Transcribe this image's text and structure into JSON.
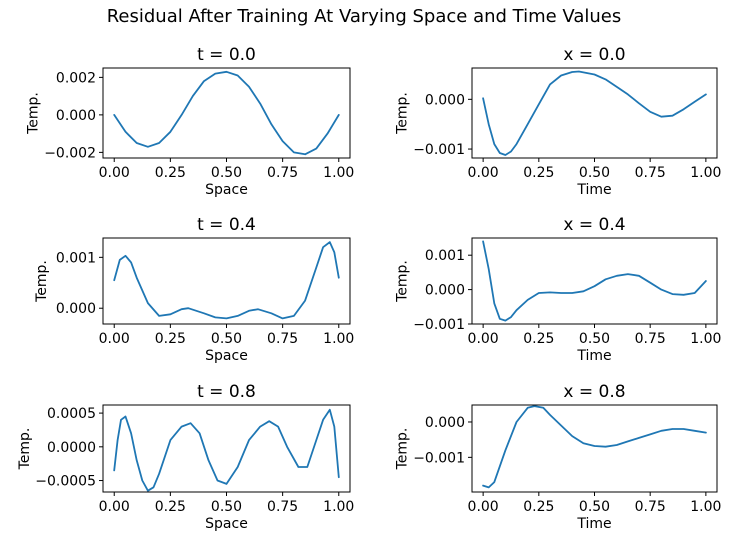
{
  "figure": {
    "title": "Residual After Training At Varying Space and Time Values"
  },
  "colors": {
    "line": "#1f77b4",
    "axes": "#000000",
    "background": "#ffffff"
  },
  "chart_data": [
    {
      "type": "line",
      "title": "t = 0.0",
      "xlabel": "Space",
      "ylabel": "Temp.",
      "xlim": [
        -0.05,
        1.05
      ],
      "ylim": [
        -0.0023,
        0.0025
      ],
      "xticks": [
        0,
        0.25,
        0.5,
        0.75,
        1
      ],
      "xtick_labels": [
        "0.00",
        "0.25",
        "0.50",
        "0.75",
        "1.00"
      ],
      "yticks": [
        -0.002,
        0,
        0.002
      ],
      "ytick_labels": [
        "−0.002",
        "0.000",
        "0.002"
      ],
      "grid": false,
      "series": [
        {
          "x": [
            0,
            0.05,
            0.1,
            0.15,
            0.2,
            0.25,
            0.3,
            0.35,
            0.4,
            0.45,
            0.5,
            0.55,
            0.6,
            0.65,
            0.7,
            0.75,
            0.8,
            0.85,
            0.9,
            0.95,
            1
          ],
          "y": [
            0,
            -0.0009,
            -0.0015,
            -0.0017,
            -0.0015,
            -0.0009,
            0.0,
            0.001,
            0.0018,
            0.0022,
            0.0023,
            0.0021,
            0.0015,
            0.0006,
            -0.0005,
            -0.0014,
            -0.002,
            -0.0021,
            -0.0018,
            -0.001,
            0
          ]
        }
      ]
    },
    {
      "type": "line",
      "title": "x = 0.0",
      "xlabel": "Time",
      "ylabel": "Temp.",
      "xlim": [
        -0.05,
        1.05
      ],
      "ylim": [
        -0.00118,
        0.00063
      ],
      "xticks": [
        0,
        0.25,
        0.5,
        0.75,
        1
      ],
      "xtick_labels": [
        "0.00",
        "0.25",
        "0.50",
        "0.75",
        "1.00"
      ],
      "yticks": [
        -0.001,
        0
      ],
      "ytick_labels": [
        "−0.001",
        "0.000"
      ],
      "grid": false,
      "series": [
        {
          "x": [
            0,
            0.025,
            0.05,
            0.075,
            0.1,
            0.125,
            0.15,
            0.2,
            0.25,
            0.3,
            0.35,
            0.4,
            0.43,
            0.5,
            0.55,
            0.6,
            0.65,
            0.7,
            0.75,
            0.8,
            0.85,
            0.9,
            0.95,
            1
          ],
          "y": [
            2e-05,
            -0.0005,
            -0.0009,
            -0.00108,
            -0.00112,
            -0.00105,
            -0.0009,
            -0.0005,
            -0.0001,
            0.0003,
            0.00048,
            0.00055,
            0.00056,
            0.0005,
            0.0004,
            0.00025,
            0.0001,
            -8e-05,
            -0.00025,
            -0.00035,
            -0.00033,
            -0.0002,
            -5e-05,
            0.0001
          ]
        }
      ]
    },
    {
      "type": "line",
      "title": "t = 0.4",
      "xlabel": "Space",
      "ylabel": "Temp.",
      "xlim": [
        -0.05,
        1.05
      ],
      "ylim": [
        -0.00031,
        0.00138
      ],
      "xticks": [
        0,
        0.25,
        0.5,
        0.75,
        1
      ],
      "xtick_labels": [
        "0.00",
        "0.25",
        "0.50",
        "0.75",
        "1.00"
      ],
      "yticks": [
        0,
        0.001
      ],
      "ytick_labels": [
        "0.000",
        "0.001"
      ],
      "grid": false,
      "series": [
        {
          "x": [
            0,
            0.025,
            0.05,
            0.075,
            0.1,
            0.15,
            0.2,
            0.25,
            0.3,
            0.33,
            0.4,
            0.45,
            0.5,
            0.55,
            0.6,
            0.64,
            0.7,
            0.75,
            0.8,
            0.85,
            0.9,
            0.93,
            0.96,
            0.98,
            1
          ],
          "y": [
            0.00055,
            0.00095,
            0.00103,
            0.0009,
            0.0006,
            0.0001,
            -0.00015,
            -0.00012,
            -2e-05,
            0.0,
            -0.0001,
            -0.00018,
            -0.0002,
            -0.00015,
            -5e-05,
            -2e-05,
            -0.0001,
            -0.0002,
            -0.00015,
            0.00015,
            0.0008,
            0.0012,
            0.0013,
            0.0011,
            0.0006
          ]
        }
      ]
    },
    {
      "type": "line",
      "title": "x = 0.4",
      "xlabel": "Time",
      "ylabel": "Temp.",
      "xlim": [
        -0.05,
        1.05
      ],
      "ylim": [
        -0.001,
        0.0015
      ],
      "xticks": [
        0,
        0.25,
        0.5,
        0.75,
        1
      ],
      "xtick_labels": [
        "0.00",
        "0.25",
        "0.50",
        "0.75",
        "1.00"
      ],
      "yticks": [
        -0.001,
        0,
        0.001
      ],
      "ytick_labels": [
        "−0.001",
        "0.000",
        "0.001"
      ],
      "grid": false,
      "series": [
        {
          "x": [
            0,
            0.025,
            0.05,
            0.075,
            0.1,
            0.125,
            0.15,
            0.2,
            0.25,
            0.3,
            0.35,
            0.4,
            0.45,
            0.5,
            0.55,
            0.6,
            0.65,
            0.7,
            0.75,
            0.8,
            0.85,
            0.9,
            0.95,
            1
          ],
          "y": [
            0.0014,
            0.0006,
            -0.0004,
            -0.00085,
            -0.0009,
            -0.0008,
            -0.0006,
            -0.0003,
            -0.0001,
            -8e-05,
            -0.0001,
            -0.0001,
            -5e-05,
            0.0001,
            0.0003,
            0.0004,
            0.00045,
            0.0004,
            0.0002,
            0.0,
            -0.00013,
            -0.00015,
            -0.0001,
            0.00025
          ]
        }
      ]
    },
    {
      "type": "line",
      "title": "t = 0.8",
      "xlabel": "Space",
      "ylabel": "Temp.",
      "xlim": [
        -0.05,
        1.05
      ],
      "ylim": [
        -0.00067,
        0.00062
      ],
      "xticks": [
        0,
        0.25,
        0.5,
        0.75,
        1
      ],
      "xtick_labels": [
        "0.00",
        "0.25",
        "0.50",
        "0.75",
        "1.00"
      ],
      "yticks": [
        -0.0005,
        0,
        0.0005
      ],
      "ytick_labels": [
        "−0.0005",
        "0.0000",
        "0.0005"
      ],
      "grid": false,
      "series": [
        {
          "x": [
            0,
            0.015,
            0.03,
            0.05,
            0.075,
            0.1,
            0.125,
            0.15,
            0.175,
            0.2,
            0.25,
            0.3,
            0.34,
            0.38,
            0.42,
            0.46,
            0.5,
            0.55,
            0.6,
            0.65,
            0.69,
            0.73,
            0.77,
            0.82,
            0.86,
            0.9,
            0.93,
            0.96,
            0.98,
            1
          ],
          "y": [
            -0.00035,
            0.0001,
            0.0004,
            0.00045,
            0.0002,
            -0.0002,
            -0.0005,
            -0.00065,
            -0.0006,
            -0.0004,
            0.0001,
            0.0003,
            0.00035,
            0.0002,
            -0.0002,
            -0.0005,
            -0.00055,
            -0.0003,
            0.0001,
            0.0003,
            0.00038,
            0.0003,
            0.0,
            -0.0003,
            -0.0003,
            0.0001,
            0.0004,
            0.00055,
            0.0003,
            -0.00045
          ]
        }
      ]
    },
    {
      "type": "line",
      "title": "x = 0.8",
      "xlabel": "Time",
      "ylabel": "Temp.",
      "xlim": [
        -0.05,
        1.05
      ],
      "ylim": [
        -0.00198,
        0.00048
      ],
      "xticks": [
        0,
        0.25,
        0.5,
        0.75,
        1
      ],
      "xtick_labels": [
        "0.00",
        "0.25",
        "0.50",
        "0.75",
        "1.00"
      ],
      "yticks": [
        -0.001,
        0
      ],
      "ytick_labels": [
        "−0.001",
        "0.000"
      ],
      "grid": false,
      "series": [
        {
          "x": [
            0,
            0.025,
            0.05,
            0.1,
            0.15,
            0.2,
            0.23,
            0.27,
            0.3,
            0.35,
            0.4,
            0.45,
            0.5,
            0.55,
            0.6,
            0.65,
            0.7,
            0.75,
            0.8,
            0.85,
            0.9,
            0.95,
            1
          ],
          "y": [
            -0.0018,
            -0.00185,
            -0.0017,
            -0.0008,
            0.0,
            0.0004,
            0.00045,
            0.0004,
            0.0002,
            -0.0001,
            -0.0004,
            -0.0006,
            -0.00068,
            -0.0007,
            -0.00065,
            -0.00055,
            -0.00045,
            -0.00035,
            -0.00025,
            -0.0002,
            -0.0002,
            -0.00025,
            -0.0003
          ]
        }
      ]
    }
  ]
}
